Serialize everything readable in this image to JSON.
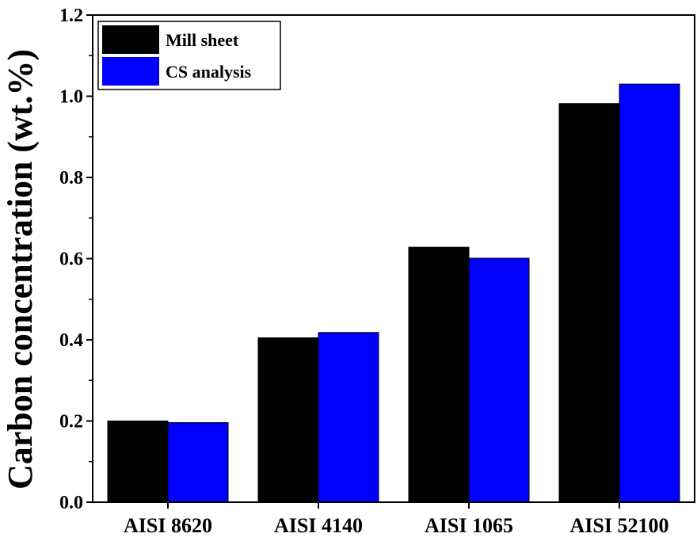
{
  "chart_data": {
    "type": "bar",
    "title": "",
    "xlabel": "",
    "ylabel": "Carbon concentration (wt.%)",
    "categories": [
      "AISI 8620",
      "AISI 4140",
      "AISI 1065",
      "AISI 52100"
    ],
    "series": [
      {
        "name": "Mill sheet",
        "color": "#000000",
        "values": [
          0.2,
          0.405,
          0.628,
          0.982
        ]
      },
      {
        "name": "CS analysis",
        "color": "#0000ff",
        "values": [
          0.196,
          0.418,
          0.601,
          1.03
        ]
      }
    ],
    "ylim": [
      0.0,
      1.2
    ],
    "yticks": [
      "0.0",
      "0.2",
      "0.4",
      "0.6",
      "0.8",
      "1.0",
      "1.2"
    ],
    "grid": false,
    "legend_position": "top-left"
  }
}
